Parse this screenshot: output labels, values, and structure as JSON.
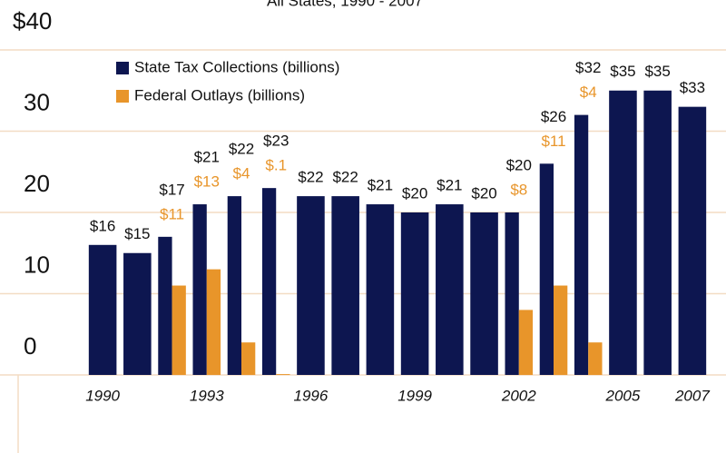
{
  "chart_data": {
    "type": "bar",
    "title": "All States, 1990 - 2007",
    "categories": [
      "1990",
      null,
      null,
      "1993",
      null,
      null,
      "1996",
      null,
      null,
      "1999",
      null,
      null,
      "2002",
      null,
      null,
      "2005",
      null,
      "2007"
    ],
    "series": [
      {
        "name": "State Tax Collections (billions)",
        "color": "#0d1650",
        "values": [
          16,
          15,
          17,
          21,
          22,
          23,
          22,
          22,
          21,
          20,
          21,
          20,
          20,
          26,
          32,
          35,
          35,
          33
        ],
        "value_labels": [
          "$16",
          "$15",
          "$17",
          "$21",
          "$22",
          "$23",
          "$22",
          "$22",
          "$21",
          "$20",
          "$21",
          "$20",
          "$20",
          "$26",
          "$32",
          "$35",
          "$35",
          "$33"
        ]
      },
      {
        "name": "Federal Outlays (billions)",
        "color": "#e8952a",
        "values": [
          null,
          null,
          11,
          13,
          4,
          0.1,
          null,
          null,
          null,
          null,
          null,
          null,
          8,
          11,
          4,
          null,
          null,
          null
        ],
        "value_labels": [
          null,
          null,
          "$11",
          "$13",
          "$4",
          "$.1",
          null,
          null,
          null,
          null,
          null,
          null,
          "$8",
          "$11",
          "$4",
          null,
          null,
          null
        ]
      }
    ],
    "ylim": [
      0,
      40
    ],
    "yticks": [
      0,
      10,
      20,
      30,
      {
        "value": 40,
        "label": "$40"
      }
    ],
    "grid": true,
    "legend": "top-left"
  }
}
